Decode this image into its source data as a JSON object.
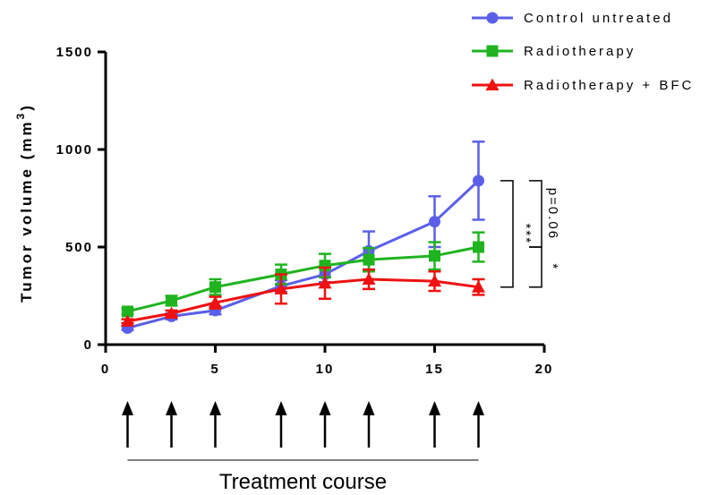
{
  "chart_data": {
    "type": "line",
    "ylabel_main": "Tumor volume (mm",
    "ylabel_sup": "3",
    "ylabel_close": ")",
    "xlim": [
      0,
      20
    ],
    "ylim": [
      0,
      1500
    ],
    "xticks": [
      0,
      5,
      10,
      15,
      20
    ],
    "yticks": [
      0,
      500,
      1000,
      1500
    ],
    "xtick_labels": [
      "0",
      "5",
      "10",
      "15",
      "20"
    ],
    "ytick_labels": [
      "0",
      "500",
      "1000",
      "1500"
    ],
    "legend_position": "top-right",
    "x": [
      1,
      3,
      5,
      8,
      10,
      12,
      15,
      17
    ],
    "series": [
      {
        "name": "Control untreated",
        "color": "#5b5fe8",
        "marker": "circle",
        "values": [
          85,
          145,
          175,
          300,
          360,
          480,
          630,
          840
        ],
        "errors": [
          10,
          15,
          20,
          30,
          40,
          100,
          130,
          200
        ]
      },
      {
        "name": "Radiotherapy",
        "color": "#1fb41f",
        "marker": "square",
        "values": [
          170,
          225,
          295,
          360,
          405,
          435,
          455,
          500
        ],
        "errors": [
          15,
          25,
          40,
          50,
          60,
          60,
          70,
          75
        ]
      },
      {
        "name": "Radiotherapy + BFC",
        "color": "#ee1111",
        "marker": "triangle",
        "values": [
          120,
          160,
          215,
          285,
          315,
          335,
          325,
          295
        ],
        "errors": [
          10,
          15,
          30,
          75,
          80,
          50,
          50,
          40
        ]
      }
    ],
    "significance": [
      {
        "label": "***",
        "y_from": 840,
        "y_to": 295
      },
      {
        "label": "*",
        "y_from": 500,
        "y_to": 295
      },
      {
        "label": "p=0.06",
        "y_from": 840,
        "y_to": 500
      }
    ],
    "treatment_days": [
      1,
      3,
      5,
      8,
      10,
      12,
      15,
      17
    ],
    "treatment_label": "Treatment course"
  }
}
